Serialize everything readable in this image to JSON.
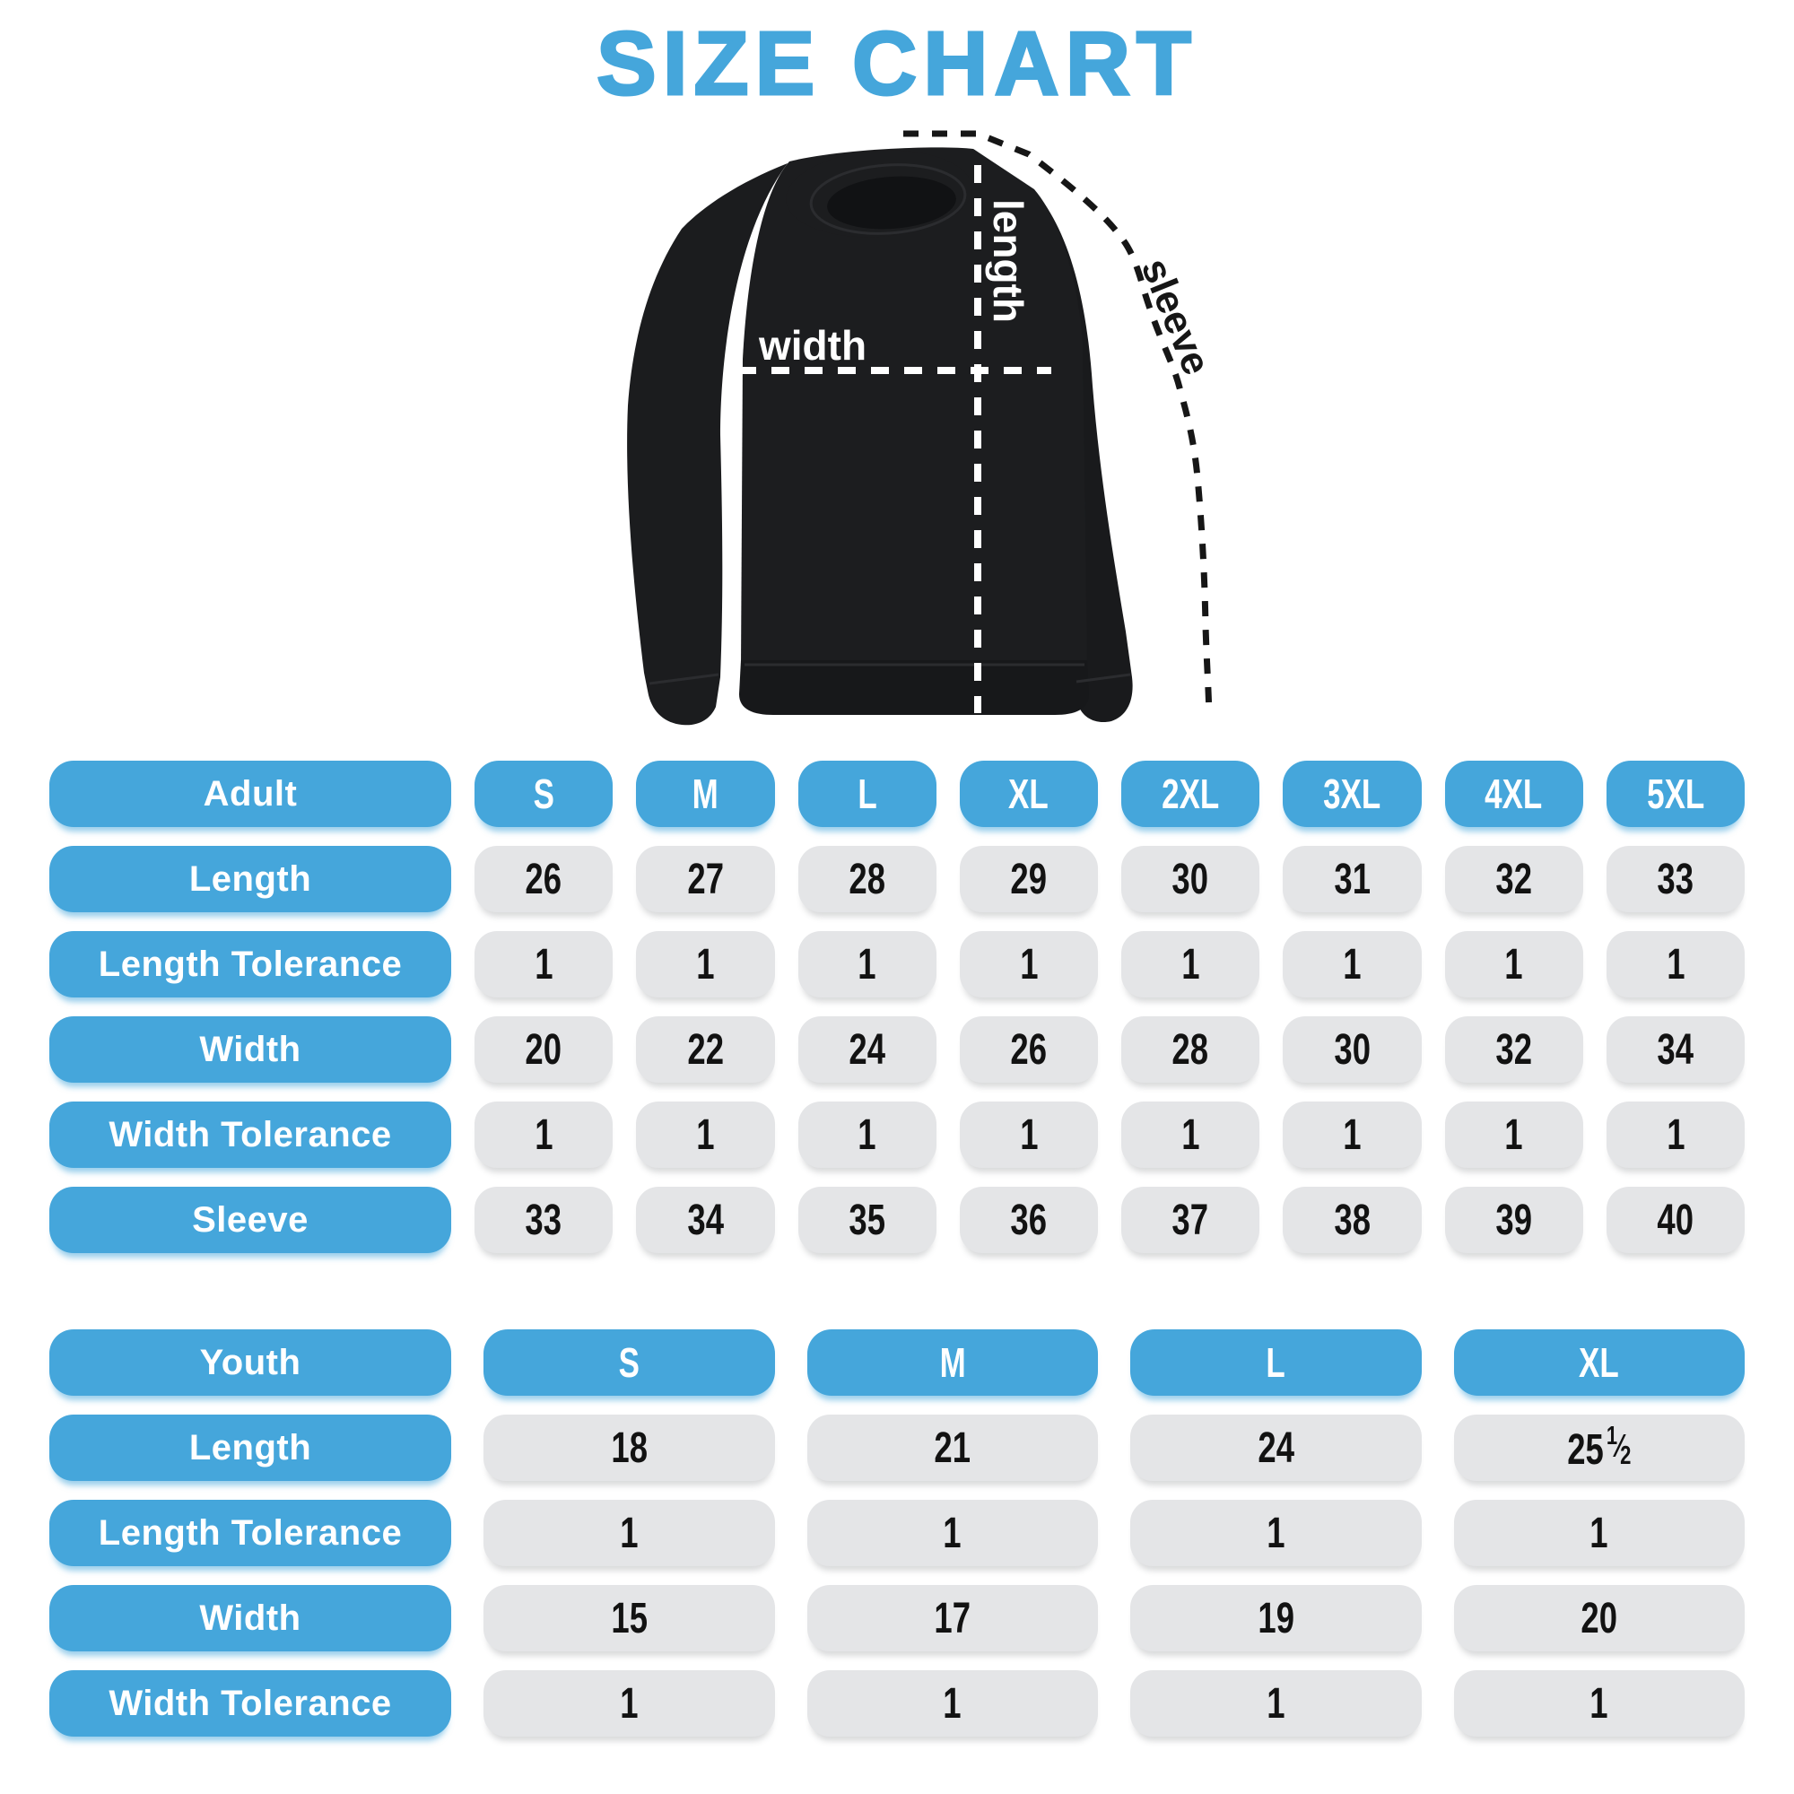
{
  "title": "SIZE CHART",
  "figure": {
    "garment": "crewneck-sweatshirt",
    "labels": {
      "length": "length",
      "width": "width",
      "sleeve": "sleeve"
    }
  },
  "colors": {
    "accent_blue": "#45A6DB",
    "cell_gray": "#E4E5E7",
    "number_black": "#121212",
    "shirt_black": "#1C1D1F",
    "label_text": "#FFFFFF"
  },
  "chart_data": [
    {
      "type": "table",
      "title": "Adult",
      "columns": [
        "S",
        "M",
        "L",
        "XL",
        "2XL",
        "3XL",
        "4XL",
        "5XL"
      ],
      "rows": [
        {
          "label": "Length",
          "values": [
            "26",
            "27",
            "28",
            "29",
            "30",
            "31",
            "32",
            "33"
          ]
        },
        {
          "label": "Length Tolerance",
          "values": [
            "1",
            "1",
            "1",
            "1",
            "1",
            "1",
            "1",
            "1"
          ]
        },
        {
          "label": "Width",
          "values": [
            "20",
            "22",
            "24",
            "26",
            "28",
            "30",
            "32",
            "34"
          ]
        },
        {
          "label": "Width Tolerance",
          "values": [
            "1",
            "1",
            "1",
            "1",
            "1",
            "1",
            "1",
            "1"
          ]
        },
        {
          "label": "Sleeve",
          "values": [
            "33",
            "34",
            "35",
            "36",
            "37",
            "38",
            "39",
            "40"
          ]
        }
      ]
    },
    {
      "type": "table",
      "title": "Youth",
      "columns": [
        "S",
        "M",
        "L",
        "XL"
      ],
      "rows": [
        {
          "label": "Length",
          "values": [
            "18",
            "21",
            "24",
            "25 1/2"
          ]
        },
        {
          "label": "Length Tolerance",
          "values": [
            "1",
            "1",
            "1",
            "1"
          ]
        },
        {
          "label": "Width",
          "values": [
            "15",
            "17",
            "19",
            "20"
          ]
        },
        {
          "label": "Width Tolerance",
          "values": [
            "1",
            "1",
            "1",
            "1"
          ]
        }
      ]
    }
  ]
}
